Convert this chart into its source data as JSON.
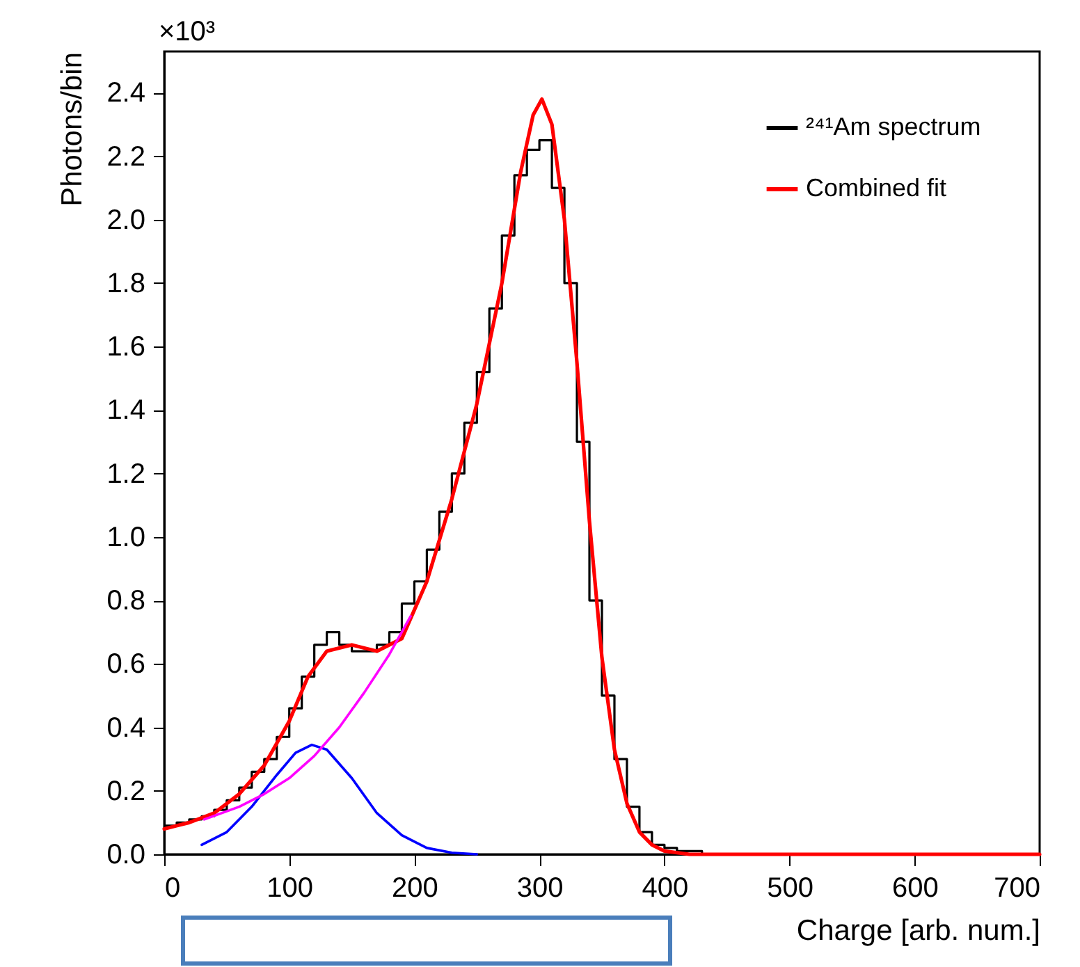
{
  "chart_data": {
    "type": "histogram",
    "xlabel": "Charge [arb. num.]",
    "ylabel": "Photons/bin",
    "annotations": [
      "×10³"
    ],
    "bins": [
      0,
      10,
      20,
      30,
      40,
      50,
      60,
      70,
      80,
      90,
      100,
      110,
      120,
      130,
      140,
      150,
      160,
      170,
      180,
      190,
      200,
      210,
      220,
      230,
      240,
      250,
      260,
      270,
      280,
      290,
      300,
      310,
      320,
      330,
      340,
      350,
      360,
      370,
      380,
      390,
      400,
      410,
      420,
      430,
      440,
      450,
      460,
      470,
      480,
      490,
      500,
      510,
      520,
      530,
      540,
      550,
      560,
      570,
      580,
      590,
      600,
      610,
      620,
      630,
      640,
      650,
      660,
      670,
      680,
      690,
      700
    ],
    "series": [
      {
        "name": "²⁴¹Am spectrum",
        "color": "#000000",
        "values": [
          0.09,
          0.1,
          0.11,
          0.12,
          0.14,
          0.17,
          0.21,
          0.26,
          0.3,
          0.37,
          0.46,
          0.56,
          0.66,
          0.7,
          0.66,
          0.64,
          0.64,
          0.66,
          0.7,
          0.79,
          0.86,
          0.96,
          1.08,
          1.2,
          1.36,
          1.52,
          1.72,
          1.95,
          2.14,
          2.22,
          2.25,
          2.1,
          1.8,
          1.3,
          0.8,
          0.5,
          0.3,
          0.15,
          0.07,
          0.03,
          0.02,
          0.01,
          0.01,
          0,
          0,
          0,
          0,
          0,
          0,
          0,
          0,
          0,
          0,
          0,
          0,
          0,
          0,
          0,
          0,
          0,
          0,
          0,
          0,
          0,
          0,
          0,
          0,
          0,
          0,
          0
        ]
      },
      {
        "type": "line",
        "name": "Combined fit",
        "color": "#ff0000",
        "x": [
          0,
          20,
          40,
          60,
          80,
          100,
          115,
          130,
          150,
          170,
          190,
          210,
          230,
          250,
          270,
          285,
          295,
          302,
          310,
          320,
          330,
          340,
          350,
          360,
          370,
          380,
          390,
          400,
          420,
          700
        ],
        "values": [
          0.08,
          0.1,
          0.13,
          0.19,
          0.28,
          0.42,
          0.56,
          0.64,
          0.66,
          0.64,
          0.68,
          0.86,
          1.12,
          1.42,
          1.8,
          2.15,
          2.33,
          2.38,
          2.3,
          2.0,
          1.55,
          1.05,
          0.62,
          0.33,
          0.16,
          0.07,
          0.03,
          0.01,
          0,
          0
        ]
      },
      {
        "type": "line",
        "color": "#0000ff",
        "x": [
          30,
          50,
          70,
          90,
          105,
          118,
          130,
          150,
          170,
          190,
          210,
          230,
          250
        ],
        "values": [
          0.03,
          0.07,
          0.15,
          0.25,
          0.32,
          0.345,
          0.33,
          0.24,
          0.13,
          0.06,
          0.02,
          0.005,
          0
        ]
      },
      {
        "type": "line",
        "color": "#ff00ff",
        "x": [
          32,
          60,
          80,
          100,
          120,
          140,
          160,
          180,
          197
        ],
        "values": [
          0.11,
          0.15,
          0.19,
          0.24,
          0.31,
          0.4,
          0.51,
          0.63,
          0.75
        ]
      }
    ],
    "xlim": [
      0,
      700
    ],
    "xticks": [
      0,
      100,
      200,
      300,
      400,
      500,
      600,
      700
    ],
    "ylim": [
      0,
      2.53
    ],
    "yticks": [
      {
        "value": 0,
        "label": "0.0"
      },
      {
        "value": 0.2,
        "label": "0.2"
      },
      {
        "value": 0.4,
        "label": "0.4"
      },
      {
        "value": 0.6,
        "label": "0.6"
      },
      {
        "value": 0.8,
        "label": "0.8"
      },
      {
        "value": 1,
        "label": "1.0"
      },
      {
        "value": 1.2,
        "label": "1.2"
      },
      {
        "value": 1.4,
        "label": "1.4"
      },
      {
        "value": 1.6,
        "label": "1.6"
      },
      {
        "value": 1.8,
        "label": "1.8"
      },
      {
        "value": 2,
        "label": "2.0"
      },
      {
        "value": 2.2,
        "label": "2.2"
      },
      {
        "value": 2.4,
        "label": "2.4"
      }
    ],
    "legend": "top right",
    "grid": false
  }
}
